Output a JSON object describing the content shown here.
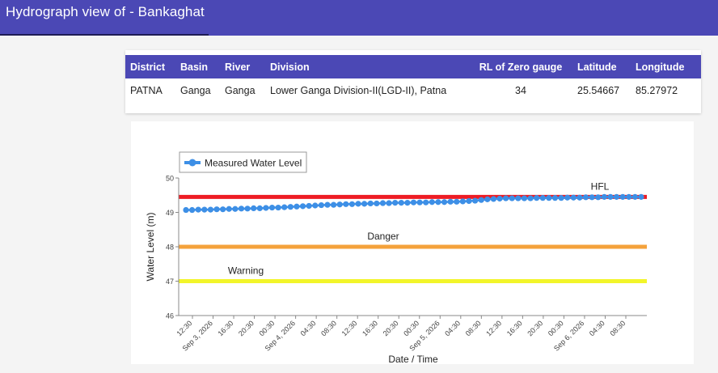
{
  "header": {
    "title": "Hydrograph view of - Bankaghat"
  },
  "station_table": {
    "columns": [
      "District",
      "Basin",
      "River",
      "Division",
      "RL of Zero gauge",
      "Latitude",
      "Longitude"
    ],
    "row": [
      "PATNA",
      "Ganga",
      "Ganga",
      "Lower Ganga Division-II(LGD-II), Patna",
      "34",
      "25.54667",
      "85.27972"
    ]
  },
  "chart_data": {
    "type": "line",
    "title": "",
    "xlabel": "Date / Time",
    "ylabel": "Water Level (m)",
    "ylim": [
      46,
      50
    ],
    "y_ticks": [
      "46",
      "47",
      "48",
      "49",
      "50"
    ],
    "x_ticks": [
      "12:30",
      "Sep 3, 2026",
      "16:30",
      "20:30",
      "00:30",
      "Sep 4, 2026",
      "04:30",
      "08:30",
      "12:30",
      "16:30",
      "20:30",
      "00:30",
      "Sep 5, 2026",
      "04:30",
      "08:30",
      "12:30",
      "16:30",
      "20:30",
      "00:30",
      "Sep 6, 2026",
      "04:30",
      "08:30"
    ],
    "legend": {
      "label": "Measured Water Level",
      "position": "top-left"
    },
    "grid": false,
    "series": [
      {
        "name": "Measured Water Level",
        "color": "#3d8fe6",
        "values": [
          49.07,
          49.07,
          49.08,
          49.08,
          49.08,
          49.09,
          49.09,
          49.1,
          49.1,
          49.11,
          49.11,
          49.12,
          49.12,
          49.13,
          49.14,
          49.14,
          49.15,
          49.16,
          49.17,
          49.18,
          49.19,
          49.2,
          49.21,
          49.22,
          49.22,
          49.23,
          49.24,
          49.24,
          49.25,
          49.25,
          49.26,
          49.26,
          49.27,
          49.27,
          49.28,
          49.28,
          49.28,
          49.29,
          49.29,
          49.29,
          49.3,
          49.3,
          49.3,
          49.31,
          49.31,
          49.32,
          49.33,
          49.34,
          49.36,
          49.38,
          49.39,
          49.4,
          49.41,
          49.41,
          49.41,
          49.41,
          49.41,
          49.42,
          49.42,
          49.42,
          49.42,
          49.42,
          49.43,
          49.43,
          49.43,
          49.44,
          49.44,
          49.44,
          49.45,
          49.45,
          49.45,
          49.45,
          49.45,
          49.45,
          49.45
        ]
      }
    ],
    "reference_lines": [
      {
        "label": "HFL",
        "value": 49.45,
        "color": "#ee1c24"
      },
      {
        "label": "Danger",
        "value": 48.0,
        "color": "#f4a23b"
      },
      {
        "label": "Warning",
        "value": 47.0,
        "color": "#f2f52a"
      }
    ]
  }
}
